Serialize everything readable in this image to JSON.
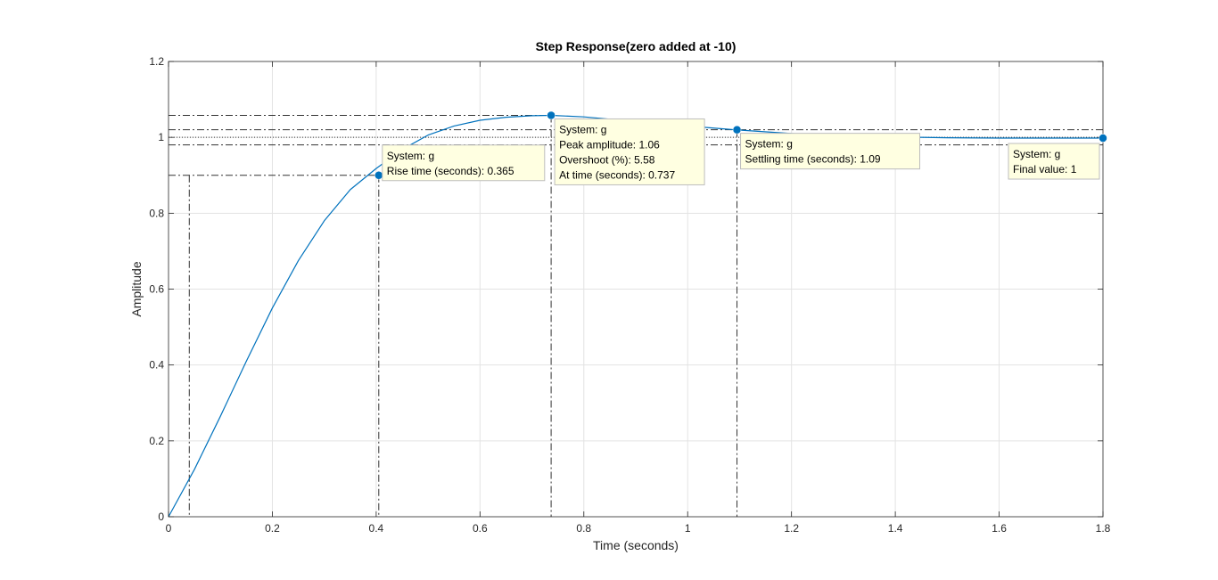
{
  "chart_data": {
    "type": "line",
    "title": "Step Response(zero added at -10)",
    "xlabel": "Time (seconds)",
    "ylabel": "Amplitude",
    "xlim": [
      0,
      1.8
    ],
    "ylim": [
      0,
      1.2
    ],
    "xticks": [
      0,
      0.2,
      0.4,
      0.6,
      0.8,
      1,
      1.2,
      1.4,
      1.6,
      1.8
    ],
    "xtick_labels": [
      "0",
      "0.2",
      "0.4",
      "0.6",
      "0.8",
      "1",
      "1.2",
      "1.4",
      "1.6",
      "1.8"
    ],
    "yticks": [
      0,
      0.2,
      0.4,
      0.6,
      0.8,
      1,
      1.2
    ],
    "ytick_labels": [
      "0",
      "0.2",
      "0.4",
      "0.6",
      "0.8",
      "1",
      "1.2"
    ],
    "grid": true,
    "line_color": "#0072BD",
    "series": [
      {
        "x": [
          0,
          0.05,
          0.1,
          0.15,
          0.2,
          0.25,
          0.3,
          0.35,
          0.4,
          0.45,
          0.5,
          0.55,
          0.6,
          0.65,
          0.7,
          0.737,
          0.8,
          0.9,
          1.0,
          1.09,
          1.2,
          1.3,
          1.4,
          1.5,
          1.6,
          1.7,
          1.8
        ],
        "values": [
          0,
          0.125,
          0.265,
          0.41,
          0.55,
          0.675,
          0.78,
          0.862,
          0.918,
          0.968,
          1.006,
          1.03,
          1.045,
          1.053,
          1.057,
          1.058,
          1.054,
          1.042,
          1.03,
          1.02,
          1.01,
          1.004,
          1.001,
          0.999,
          0.998,
          0.998,
          0.998
        ]
      }
    ],
    "reference_lines": {
      "rise_start_time": 0.04,
      "rise_end_time": 0.405,
      "rise_low": 0.1,
      "rise_high": 0.9,
      "settling_upper": 1.02,
      "settling_lower": 0.98,
      "final_value": 1,
      "peak_time": 0.737,
      "peak_amplitude": 1.058,
      "settling_time": 1.095
    },
    "markers": [
      {
        "x": 0.405,
        "y": 0.9,
        "tip_position": "right"
      },
      {
        "x": 0.737,
        "y": 1.058,
        "tip_position": "right-below"
      },
      {
        "x": 1.095,
        "y": 1.02,
        "tip_position": "right-below"
      },
      {
        "x": 1.8,
        "y": 0.998,
        "tip_position": "left-below"
      }
    ],
    "annotations": [
      {
        "lines": [
          "System: g",
          "Rise time (seconds): 0.365"
        ]
      },
      {
        "lines": [
          "System: g",
          "Peak amplitude: 1.06",
          "Overshoot (%): 5.58",
          "At time (seconds): 0.737"
        ]
      },
      {
        "lines": [
          "System: g",
          "Settling time (seconds): 1.09"
        ]
      },
      {
        "lines": [
          "System: g",
          "Final value: 1"
        ]
      }
    ]
  }
}
